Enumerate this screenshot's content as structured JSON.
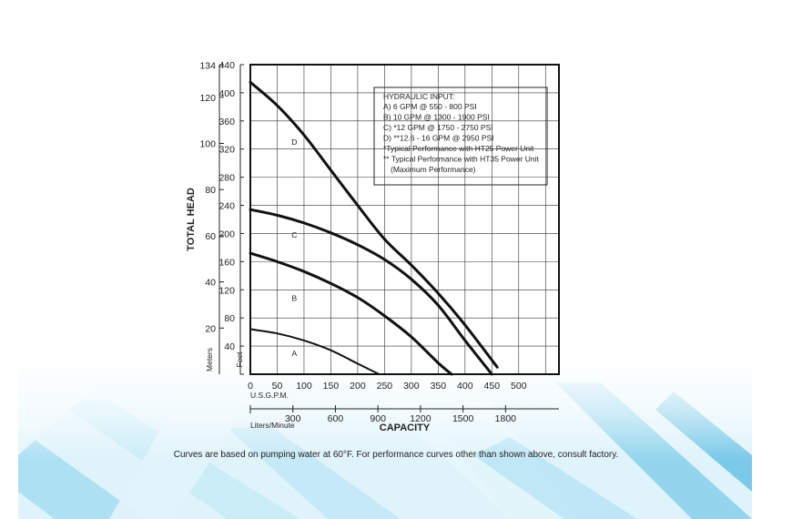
{
  "chart_data": {
    "type": "line",
    "x_units": "U.S.G.P.M.",
    "x_ticks": [
      0,
      50,
      100,
      150,
      200,
      250,
      300,
      350,
      400,
      450,
      500
    ],
    "x_secondary_units": "Liters/Minute",
    "x_secondary_ticks": [
      300,
      600,
      900,
      1200,
      1500,
      1800
    ],
    "xlabel": "CAPACITY",
    "ylabel": "TOTAL HEAD",
    "y_units": "Feet",
    "y_ticks": [
      40,
      80,
      120,
      160,
      200,
      240,
      280,
      320,
      360,
      400,
      440
    ],
    "y_secondary_units": "Meters",
    "y_secondary_ticks": [
      20,
      40,
      60,
      80,
      100,
      120,
      134
    ],
    "xlim": [
      0,
      575
    ],
    "ylim": [
      0,
      440
    ],
    "grid": true,
    "series": [
      {
        "name": "A",
        "x": [
          0,
          50,
          100,
          150,
          200,
          240
        ],
        "y": [
          64,
          58,
          48,
          34,
          15,
          0
        ]
      },
      {
        "name": "B",
        "x": [
          0,
          50,
          100,
          150,
          200,
          250,
          300,
          350,
          375
        ],
        "y": [
          172,
          160,
          146,
          129,
          109,
          83,
          53,
          16,
          0
        ]
      },
      {
        "name": "C",
        "x": [
          0,
          50,
          100,
          150,
          200,
          250,
          300,
          350,
          400,
          450
        ],
        "y": [
          234,
          226,
          215,
          201,
          184,
          163,
          135,
          98,
          48,
          0
        ]
      },
      {
        "name": "D",
        "x": [
          0,
          50,
          100,
          150,
          200,
          250,
          300,
          350,
          400,
          460
        ],
        "y": [
          415,
          382,
          340,
          290,
          240,
          192,
          155,
          115,
          70,
          10
        ]
      }
    ],
    "legend_position": "top-right",
    "legend": {
      "title": "HYDRAULIC INPUT:",
      "lines": [
        "A) 6 GPM @ 550 - 800 PSI",
        "B) 10 GPM @ 1300 - 1900 PSI",
        "C) *12 GPM @ 1750 - 2750 PSI",
        "D) **12.6 - 16 GPM @ 2950 PSI",
        "*Typical Performance with HT25 Power Unit",
        "** Typical Performance with HT35 Power Unit",
        "(Maximum Performance)"
      ]
    }
  },
  "footnote": "Curves are based on pumping water at 60°F. For performance curves other than shown above, consult factory."
}
